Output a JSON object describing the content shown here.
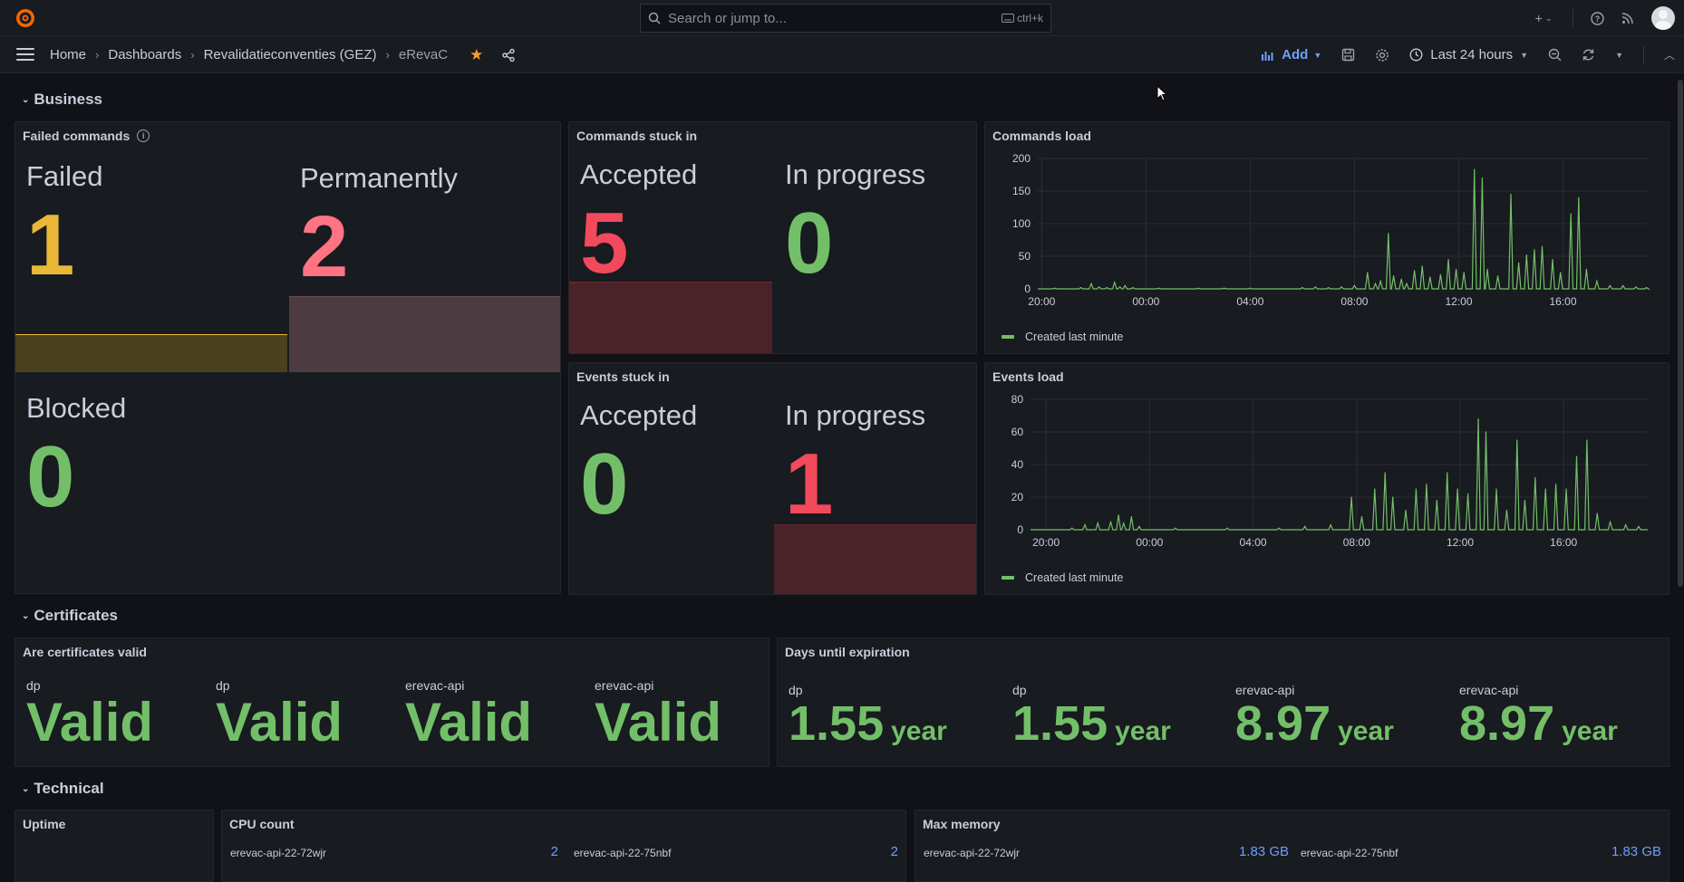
{
  "topbar": {
    "search_placeholder": "Search or jump to...",
    "shortcut": "ctrl+k",
    "icons": [
      "grafana-logo-icon",
      "plus-icon",
      "help-icon",
      "news-icon",
      "avatar"
    ]
  },
  "nav": {
    "breadcrumbs": [
      "Home",
      "Dashboards",
      "Revalidatieconventies (GEZ)",
      "eRevaC"
    ],
    "add_label": "Add",
    "time_range": "Last 24 hours"
  },
  "rows": {
    "business": "Business",
    "certificates": "Certificates",
    "technical": "Technical"
  },
  "failed_commands": {
    "title": "Failed commands",
    "stats": [
      {
        "label": "Failed",
        "value": "1",
        "color": "#eab839"
      },
      {
        "label": "Permanently",
        "value": "2",
        "color": "#ff7383"
      },
      {
        "label": "Blocked",
        "value": "0",
        "color": "#73bf69"
      }
    ]
  },
  "commands_stuck": {
    "title": "Commands stuck in",
    "stats": [
      {
        "label": "Accepted",
        "value": "5",
        "color": "#f2495c"
      },
      {
        "label": "In progress",
        "value": "0",
        "color": "#73bf69"
      }
    ]
  },
  "events_stuck": {
    "title": "Events stuck in",
    "stats": [
      {
        "label": "Accepted",
        "value": "0",
        "color": "#73bf69"
      },
      {
        "label": "In progress",
        "value": "1",
        "color": "#f2495c"
      }
    ]
  },
  "commands_load": {
    "title": "Commands load",
    "legend": "Created last minute"
  },
  "events_load": {
    "title": "Events load",
    "legend": "Created last minute"
  },
  "chart_data": [
    {
      "type": "line",
      "title": "Commands load",
      "xlabel": "",
      "ylabel": "",
      "ylim": [
        0,
        200
      ],
      "yticks": [
        0,
        50,
        100,
        150,
        200
      ],
      "xticks": [
        "20:00",
        "00:00",
        "04:00",
        "08:00",
        "12:00",
        "16:00"
      ],
      "xrange_hours": [
        -0.15,
        23.25
      ],
      "series": [
        {
          "name": "Created last minute",
          "color": "#73bf69",
          "points": [
            [
              0.5,
              1
            ],
            [
              1.5,
              2
            ],
            [
              1.9,
              8
            ],
            [
              2.2,
              3
            ],
            [
              2.5,
              2
            ],
            [
              2.8,
              10
            ],
            [
              3.0,
              3
            ],
            [
              3.2,
              5
            ],
            [
              3.5,
              2
            ],
            [
              4.5,
              1
            ],
            [
              6,
              1
            ],
            [
              7,
              1
            ],
            [
              8,
              1
            ],
            [
              10,
              2
            ],
            [
              10.5,
              3
            ],
            [
              11,
              2
            ],
            [
              11.5,
              3
            ],
            [
              12.0,
              5
            ],
            [
              12.5,
              25
            ],
            [
              12.8,
              8
            ],
            [
              13,
              12
            ],
            [
              13.3,
              85
            ],
            [
              13.5,
              20
            ],
            [
              13.8,
              15
            ],
            [
              14.0,
              8
            ],
            [
              14.3,
              28
            ],
            [
              14.6,
              35
            ],
            [
              14.9,
              18
            ],
            [
              15.3,
              22
            ],
            [
              15.6,
              45
            ],
            [
              15.9,
              30
            ],
            [
              16.2,
              25
            ],
            [
              16.6,
              183
            ],
            [
              16.9,
              170
            ],
            [
              17.1,
              30
            ],
            [
              17.5,
              20
            ],
            [
              18.0,
              145
            ],
            [
              18.3,
              40
            ],
            [
              18.6,
              52
            ],
            [
              18.9,
              60
            ],
            [
              19.2,
              65
            ],
            [
              19.6,
              45
            ],
            [
              19.9,
              25
            ],
            [
              20.3,
              115
            ],
            [
              20.6,
              140
            ],
            [
              20.9,
              30
            ],
            [
              21.3,
              12
            ],
            [
              21.8,
              5
            ],
            [
              22.3,
              5
            ],
            [
              22.8,
              3
            ],
            [
              23.2,
              2
            ]
          ]
        }
      ]
    },
    {
      "type": "line",
      "title": "Events load",
      "xlabel": "",
      "ylabel": "",
      "ylim": [
        0,
        80
      ],
      "yticks": [
        0,
        20,
        40,
        60,
        80
      ],
      "xticks": [
        "20:00",
        "00:00",
        "04:00",
        "08:00",
        "12:00",
        "16:00"
      ],
      "xrange_hours": [
        -0.6,
        23.25
      ],
      "series": [
        {
          "name": "Created last minute",
          "color": "#73bf69",
          "points": [
            [
              1.0,
              1
            ],
            [
              1.5,
              3
            ],
            [
              2.0,
              4
            ],
            [
              2.5,
              5
            ],
            [
              2.8,
              9
            ],
            [
              3.0,
              4
            ],
            [
              3.3,
              8
            ],
            [
              3.6,
              2
            ],
            [
              5,
              1
            ],
            [
              7,
              1
            ],
            [
              9,
              1
            ],
            [
              10,
              2
            ],
            [
              11.0,
              3
            ],
            [
              11.8,
              20
            ],
            [
              12.2,
              8
            ],
            [
              12.7,
              25
            ],
            [
              13.1,
              35
            ],
            [
              13.4,
              20
            ],
            [
              13.9,
              12
            ],
            [
              14.3,
              25
            ],
            [
              14.7,
              28
            ],
            [
              15.1,
              18
            ],
            [
              15.5,
              35
            ],
            [
              15.9,
              25
            ],
            [
              16.3,
              22
            ],
            [
              16.7,
              68
            ],
            [
              17.0,
              60
            ],
            [
              17.4,
              25
            ],
            [
              17.8,
              12
            ],
            [
              18.2,
              55
            ],
            [
              18.5,
              18
            ],
            [
              18.9,
              32
            ],
            [
              19.3,
              25
            ],
            [
              19.7,
              28
            ],
            [
              20.1,
              25
            ],
            [
              20.5,
              45
            ],
            [
              20.9,
              55
            ],
            [
              21.3,
              10
            ],
            [
              21.8,
              5
            ],
            [
              22.4,
              3
            ],
            [
              22.9,
              2
            ]
          ]
        }
      ]
    }
  ],
  "certs_valid": {
    "title": "Are certificates valid",
    "items": [
      {
        "label": "dp",
        "value": "Valid"
      },
      {
        "label": "dp",
        "value": "Valid"
      },
      {
        "label": "erevac-api",
        "value": "Valid"
      },
      {
        "label": "erevac-api",
        "value": "Valid"
      }
    ]
  },
  "days_expiration": {
    "title": "Days until expiration",
    "items": [
      {
        "label": "dp",
        "value": "1.55",
        "unit": "year"
      },
      {
        "label": "dp",
        "value": "1.55",
        "unit": "year"
      },
      {
        "label": "erevac-api",
        "value": "8.97",
        "unit": "year"
      },
      {
        "label": "erevac-api",
        "value": "8.97",
        "unit": "year"
      }
    ]
  },
  "uptime": {
    "title": "Uptime"
  },
  "cpu_count": {
    "title": "CPU count",
    "items": [
      {
        "label": "erevac-api-22-72wjr",
        "value": "2"
      },
      {
        "label": "erevac-api-22-75nbf",
        "value": "2"
      }
    ]
  },
  "max_memory": {
    "title": "Max memory",
    "items": [
      {
        "label": "erevac-api-22-72wjr",
        "value": "1.83 GB"
      },
      {
        "label": "erevac-api-22-75nbf",
        "value": "1.83 GB"
      }
    ]
  }
}
